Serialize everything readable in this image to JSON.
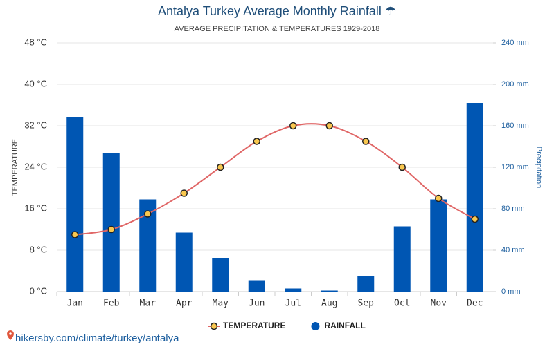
{
  "chart_data": {
    "type": "combo",
    "title": "Antalya Turkey Average Monthly Rainfall ☂",
    "subtitle": "AVERAGE PRECIPITATION & TEMPERATURES 1929-2018",
    "y_label": "TEMPERATURE",
    "y2_label": "Precipitation",
    "source": "hikersby.com/climate/turkey/antalya",
    "categories": [
      "Jan",
      "Feb",
      "Mar",
      "Apr",
      "May",
      "Jun",
      "Jul",
      "Aug",
      "Sep",
      "Oct",
      "Nov",
      "Dec"
    ],
    "series": [
      {
        "name": "TEMPERATURE",
        "type": "line",
        "color": "#e06666",
        "marker_color": "#f9c74f",
        "values": [
          11,
          12,
          15,
          19,
          24,
          29,
          32,
          32,
          29,
          24,
          18,
          14
        ]
      },
      {
        "name": "RAINFALL",
        "type": "bar",
        "axis": "y2",
        "color": "#0056b3",
        "values": [
          168,
          134,
          89,
          57,
          32,
          11,
          3,
          1,
          15,
          63,
          89,
          182
        ]
      }
    ],
    "ylim": [
      0,
      48
    ],
    "yticks": [
      {
        "value": 0,
        "label": "0 °C"
      },
      {
        "value": 8,
        "label": "8 °C"
      },
      {
        "value": 16,
        "label": "16 °C"
      },
      {
        "value": 24,
        "label": "24 °C"
      },
      {
        "value": 32,
        "label": "32 °C"
      },
      {
        "value": 40,
        "label": "40 °C"
      },
      {
        "value": 48,
        "label": "48 °C"
      }
    ],
    "y2lim": [
      0,
      240
    ],
    "y2ticks": [
      {
        "value": 0,
        "label": "0 mm"
      },
      {
        "value": 40,
        "label": "40 mm"
      },
      {
        "value": 80,
        "label": "80 mm"
      },
      {
        "value": 120,
        "label": "120 mm"
      },
      {
        "value": 160,
        "label": "160 mm"
      },
      {
        "value": 200,
        "label": "200 mm"
      },
      {
        "value": 240,
        "label": "240 mm"
      }
    ],
    "grid": true
  }
}
